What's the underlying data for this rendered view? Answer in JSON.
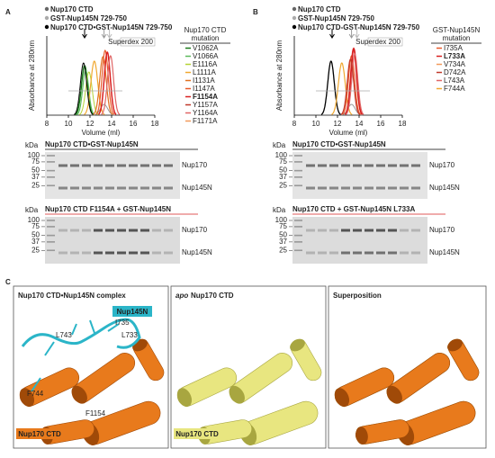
{
  "panel_a": {
    "label": "A",
    "legend": [
      "Nup170 CTD",
      "GST-Nup145N 729-750",
      "Nup170 CTD•GST-Nup145N 729-750"
    ],
    "column": "Superdex 200",
    "y_label": "Absorbance at 280nm",
    "x_label": "Volume (ml)",
    "x_ticks": [
      8,
      10,
      12,
      14,
      16,
      18
    ],
    "mutation_header": [
      "Nup170 CTD",
      "mutation"
    ],
    "mutations": [
      {
        "name": "V1062A",
        "color": "#1a7a1a"
      },
      {
        "name": "V1066A",
        "color": "#5cb85c"
      },
      {
        "name": "E1116A",
        "color": "#b5d334"
      },
      {
        "name": "L1111A",
        "color": "#f0a830"
      },
      {
        "name": "I1131A",
        "color": "#e07020"
      },
      {
        "name": "I1147A",
        "color": "#e85a2a"
      },
      {
        "name": "F1154A",
        "color": "#d92020",
        "bold": true
      },
      {
        "name": "Y1157A",
        "color": "#c0392b"
      },
      {
        "name": "Y1164A",
        "color": "#e06666"
      },
      {
        "name": "F1171A",
        "color": "#f29a5c"
      }
    ],
    "gels": [
      {
        "title": "Nup170 CTD•GST-Nup145N",
        "kda": "kDa",
        "markers": [
          100,
          75,
          50,
          37,
          25
        ],
        "bands": [
          "Nup170",
          "Nup145N"
        ]
      },
      {
        "title": "Nup170 CTD F1154A + GST-Nup145N",
        "kda": "kDa",
        "markers": [
          100,
          75,
          50,
          37,
          25
        ],
        "bands": [
          "Nup170",
          "Nup145N"
        ]
      }
    ]
  },
  "panel_b": {
    "label": "B",
    "legend": [
      "Nup170 CTD",
      "GST-Nup145N 729-750",
      "Nup170 CTD-GST-Nup145N 729-750"
    ],
    "column": "Superdex 200",
    "y_label": "Absorbance at 280nm",
    "x_label": "Volume (ml)",
    "x_ticks": [
      8,
      10,
      12,
      14,
      16,
      18
    ],
    "mutation_header": [
      "GST-Nup145N",
      "mutation"
    ],
    "mutations": [
      {
        "name": "I735A",
        "color": "#e85a2a"
      },
      {
        "name": "L733A",
        "color": "#d92020",
        "bold": true
      },
      {
        "name": "V734A",
        "color": "#f29a5c"
      },
      {
        "name": "D742A",
        "color": "#c0392b"
      },
      {
        "name": "L743A",
        "color": "#e06666"
      },
      {
        "name": "F744A",
        "color": "#f0a830"
      }
    ],
    "gels": [
      {
        "title": "Nup170 CTD•GST-Nup145N",
        "kda": "kDa",
        "markers": [
          100,
          75,
          50,
          37,
          25
        ],
        "bands": [
          "Nup170",
          "Nup145N"
        ]
      },
      {
        "title": "Nup170 CTD  + GST-Nup145N L733A",
        "kda": "kDa",
        "markers": [
          100,
          75,
          50,
          37,
          25
        ],
        "bands": [
          "Nup170",
          "Nup145N"
        ]
      }
    ]
  },
  "panel_c": {
    "label": "C",
    "views": [
      {
        "title": "Nup170 CTD•Nup145N complex"
      },
      {
        "title_italic": "apo",
        "title": "Nup170 CTD"
      },
      {
        "title": "Superposition"
      }
    ],
    "peptide": "Nup145N",
    "residues": [
      "I735",
      "L733",
      "L743",
      "F744",
      "F1154"
    ],
    "domain": "Nup170 CTD"
  }
}
